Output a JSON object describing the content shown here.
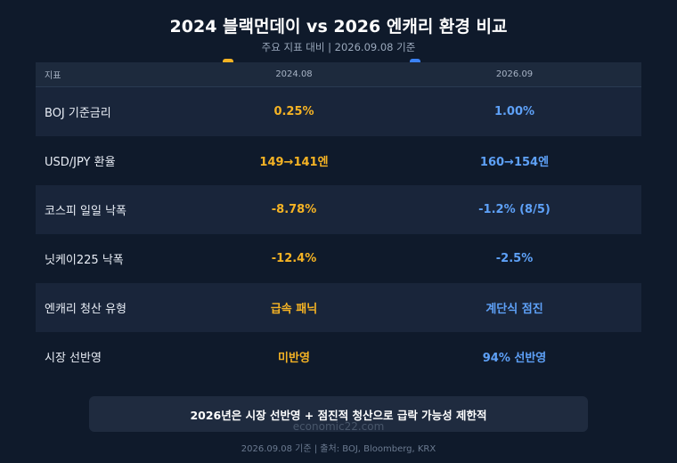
{
  "title": "2024 블랙먼데이 vs 2026 엔캐리 환경 비교",
  "subtitle": "주요 지표 대비 | 2026.09.08 기준",
  "colors": {
    "accent_2024": "#f5b324",
    "accent_2026": "#5ea1f8",
    "background": "#0f1a2b"
  },
  "table": {
    "headers": [
      "지표",
      "2024.08",
      "2026.09"
    ],
    "rows": [
      {
        "label": "BOJ 기준금리",
        "v2024": "0.25%",
        "v2026": "1.00%"
      },
      {
        "label": "USD/JPY 환율",
        "v2024": "149→141엔",
        "v2026": "160→154엔"
      },
      {
        "label": "코스피 일일 낙폭",
        "v2024": "-8.78%",
        "v2026": "-1.2% (8/5)"
      },
      {
        "label": "닛케이225 낙폭",
        "v2024": "-12.4%",
        "v2026": "-2.5%"
      },
      {
        "label": "엔캐리 청산 유형",
        "v2024": "급속 패닉",
        "v2026": "계단식 점진"
      },
      {
        "label": "시장 선반영",
        "v2024": "미반영",
        "v2026": "94% 선반영"
      }
    ]
  },
  "note": "2026년은 시장 선반영 + 점진적 청산으로 급락 가능성 제한적",
  "watermark": "economic22.com",
  "footer": "2026.09.08 기준 | 출처: BOJ, Bloomberg, KRX"
}
